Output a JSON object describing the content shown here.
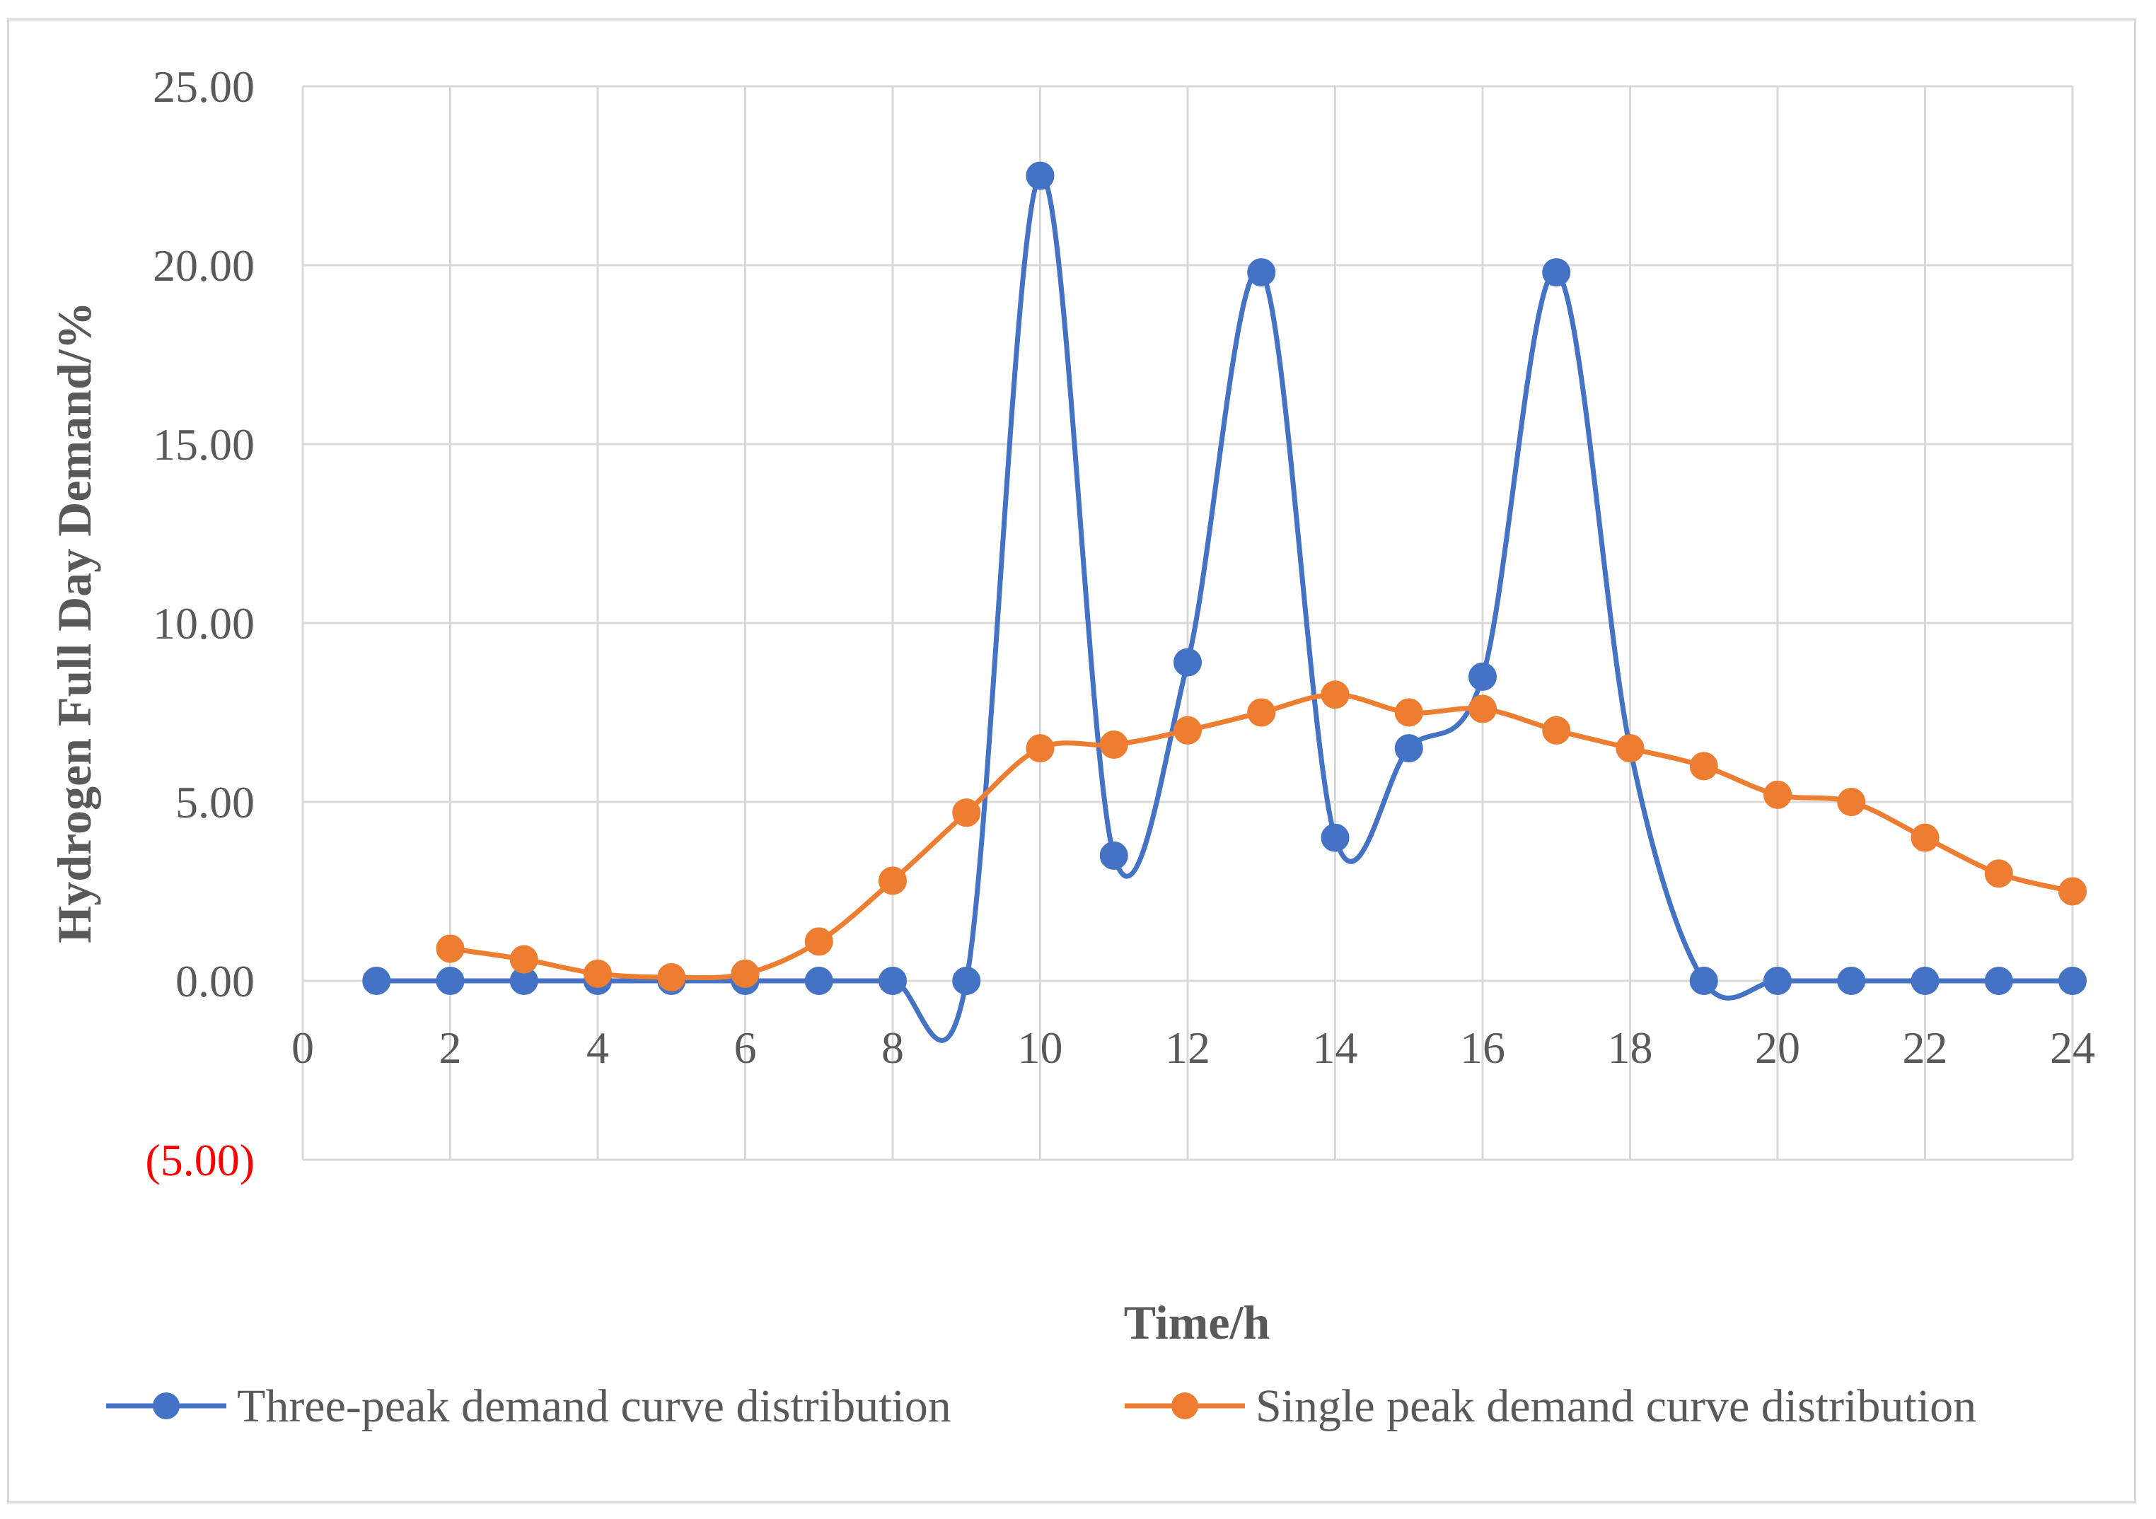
{
  "chart_data": {
    "type": "line",
    "title": "",
    "xlabel": "Time/h",
    "ylabel": "Hydrogen Full Day Demand/%",
    "xlim": [
      0,
      24
    ],
    "ylim": [
      -5,
      25
    ],
    "x_ticks": [
      "0",
      "2",
      "4",
      "6",
      "8",
      "10",
      "12",
      "14",
      "16",
      "18",
      "20",
      "22",
      "24"
    ],
    "y_ticks": [
      {
        "value": 25,
        "label": "25.00",
        "color": "#595959"
      },
      {
        "value": 20,
        "label": "20.00",
        "color": "#595959"
      },
      {
        "value": 15,
        "label": "15.00",
        "color": "#595959"
      },
      {
        "value": 10,
        "label": "10.00",
        "color": "#595959"
      },
      {
        "value": 5,
        "label": "5.00",
        "color": "#595959"
      },
      {
        "value": 0,
        "label": "0.00",
        "color": "#595959"
      },
      {
        "value": -5,
        "label": "(5.00)",
        "color": "#ff0000"
      }
    ],
    "grid": true,
    "legend_position": "bottom",
    "series": [
      {
        "name": "Three-peak demand curve distribution",
        "color": "#4472c4",
        "x": [
          1,
          2,
          3,
          4,
          5,
          6,
          7,
          8,
          9,
          10,
          11,
          12,
          13,
          14,
          15,
          16,
          17,
          18,
          19,
          20,
          21,
          22,
          23,
          24
        ],
        "values": [
          0,
          0,
          0,
          0,
          0,
          0,
          0,
          0,
          0,
          22.5,
          3.5,
          8.9,
          19.8,
          4.0,
          6.5,
          8.5,
          19.8,
          6.5,
          0,
          0,
          0,
          0,
          0,
          0
        ]
      },
      {
        "name": "Single peak demand curve distribution",
        "color": "#ed7d31",
        "x": [
          2,
          3,
          4,
          5,
          6,
          7,
          8,
          9,
          10,
          11,
          12,
          13,
          14,
          15,
          16,
          17,
          18,
          19,
          20,
          21,
          22,
          23,
          24
        ],
        "values": [
          0.9,
          0.6,
          0.2,
          0.1,
          0.2,
          1.1,
          2.8,
          4.7,
          6.5,
          6.6,
          7.0,
          7.5,
          8.0,
          7.5,
          7.6,
          7.0,
          6.5,
          6.0,
          5.2,
          5.0,
          4.0,
          3.0,
          2.5
        ]
      }
    ]
  }
}
